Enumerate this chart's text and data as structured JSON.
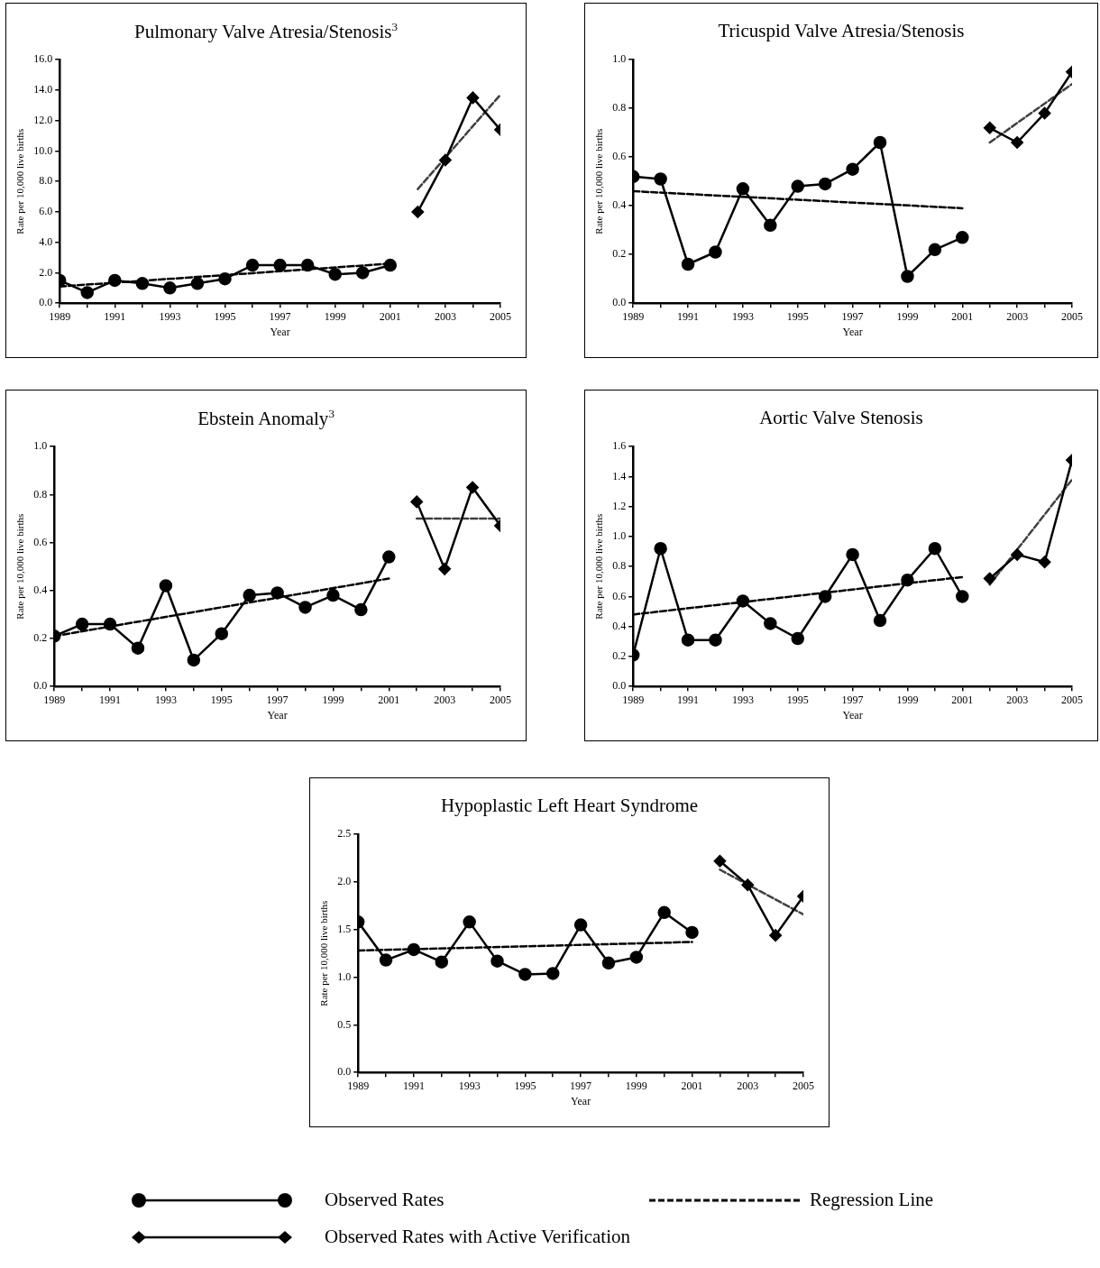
{
  "chart_data": [
    {
      "type": "line",
      "title": "Pulmonary Valve Atresia/Stenosis$^{3}$",
      "xlabel": "Year",
      "ylabel": "Rate per 10,000 live births",
      "xlim": [
        1989,
        2005
      ],
      "xticks": [
        1989,
        {
          "value": 1990,
          "label": null
        },
        1991,
        {
          "value": 1992,
          "label": null
        },
        1993,
        {
          "value": 1994,
          "label": null
        },
        1995,
        {
          "value": 1996,
          "label": null
        },
        1997,
        {
          "value": 1998,
          "label": null
        },
        1999,
        {
          "value": 2000,
          "label": null
        },
        2001,
        {
          "value": 2002,
          "label": null
        },
        2003,
        {
          "value": 2004,
          "label": null
        },
        2005
      ],
      "ylim": [
        0,
        16
      ],
      "yticks": [
        {
          "value": 0,
          "label": "0.0"
        },
        {
          "value": 2,
          "label": "2.0"
        },
        {
          "value": 4,
          "label": "4.0"
        },
        {
          "value": 6,
          "label": "6.0"
        },
        {
          "value": 8,
          "label": "8.0"
        },
        {
          "value": 10,
          "label": "10.0"
        },
        {
          "value": 12,
          "label": "12.0"
        },
        {
          "value": 14,
          "label": "14.0"
        },
        {
          "value": 16,
          "label": "16.0"
        }
      ],
      "legend": false,
      "series": [
        {
          "color": "#000000",
          "marker": "circle",
          "line_style": "solid",
          "x": [
            1989,
            1990,
            1991,
            1992,
            1993,
            1994,
            1995,
            1996,
            1997,
            1998,
            1999,
            2000,
            2001
          ],
          "values": [
            1.5,
            0.7,
            1.5,
            1.3,
            1.0,
            1.3,
            1.6,
            2.5,
            2.5,
            2.5,
            1.9,
            2.0,
            2.5
          ]
        },
        {
          "color": "#000000",
          "marker": "none",
          "line_style": "dashed",
          "x": [
            1989,
            2001
          ],
          "values": [
            1.1,
            2.6
          ]
        },
        {
          "color": "#000000",
          "marker": "diamond",
          "line_style": "solid",
          "x": [
            2002,
            2003,
            2004,
            2005
          ],
          "values": [
            6.0,
            9.4,
            13.5,
            11.4
          ]
        },
        {
          "color": "#404040",
          "marker": "none",
          "line_style": "dashed",
          "x": [
            2002,
            2005
          ],
          "values": [
            7.5,
            13.7
          ]
        }
      ]
    },
    {
      "type": "line",
      "title": "Tricuspid Valve Atresia/Stenosis",
      "xlabel": "Year",
      "ylabel": "Rate per 10,000 live births",
      "xlim": [
        1989,
        2005
      ],
      "xticks": [
        1989,
        {
          "value": 1990,
          "label": null
        },
        1991,
        {
          "value": 1992,
          "label": null
        },
        1993,
        {
          "value": 1994,
          "label": null
        },
        1995,
        {
          "value": 1996,
          "label": null
        },
        1997,
        {
          "value": 1998,
          "label": null
        },
        1999,
        {
          "value": 2000,
          "label": null
        },
        2001,
        {
          "value": 2002,
          "label": null
        },
        2003,
        {
          "value": 2004,
          "label": null
        },
        2005
      ],
      "ylim": [
        0,
        1
      ],
      "yticks": [
        {
          "value": 0,
          "label": "0.0"
        },
        0.2,
        0.4,
        0.6,
        0.8,
        {
          "value": 1,
          "label": "1.0"
        }
      ],
      "legend": false,
      "series": [
        {
          "color": "#000000",
          "marker": "circle",
          "line_style": "solid",
          "x": [
            1989,
            1990,
            1991,
            1992,
            1993,
            1994,
            1995,
            1996,
            1997,
            1998,
            1999,
            2000,
            2001
          ],
          "values": [
            0.52,
            0.51,
            0.16,
            0.21,
            0.47,
            0.32,
            0.48,
            0.49,
            0.55,
            0.66,
            0.11,
            0.22,
            0.27
          ]
        },
        {
          "color": "#000000",
          "marker": "none",
          "line_style": "dashed",
          "x": [
            1989,
            2001
          ],
          "values": [
            0.46,
            0.39
          ]
        },
        {
          "color": "#000000",
          "marker": "diamond",
          "line_style": "solid",
          "x": [
            2002,
            2003,
            2004,
            2005
          ],
          "values": [
            0.72,
            0.66,
            0.78,
            0.95
          ]
        },
        {
          "color": "#404040",
          "marker": "none",
          "line_style": "dashed",
          "x": [
            2002,
            2005
          ],
          "values": [
            0.66,
            0.9
          ]
        }
      ]
    },
    {
      "type": "line",
      "title": "Ebstein Anomaly$^{3}$",
      "xlabel": "Year",
      "ylabel": "Rate per 10,000 live births",
      "xlim": [
        1989,
        2005
      ],
      "xticks": [
        1989,
        {
          "value": 1990,
          "label": null
        },
        1991,
        {
          "value": 1992,
          "label": null
        },
        1993,
        {
          "value": 1994,
          "label": null
        },
        1995,
        {
          "value": 1996,
          "label": null
        },
        1997,
        {
          "value": 1998,
          "label": null
        },
        1999,
        {
          "value": 2000,
          "label": null
        },
        2001,
        {
          "value": 2002,
          "label": null
        },
        2003,
        {
          "value": 2004,
          "label": null
        },
        2005
      ],
      "ylim": [
        0,
        1
      ],
      "yticks": [
        {
          "value": 0,
          "label": "0.0"
        },
        0.2,
        0.4,
        0.6,
        0.8,
        {
          "value": 1,
          "label": "1.0"
        }
      ],
      "legend": false,
      "series": [
        {
          "color": "#000000",
          "marker": "circle",
          "line_style": "solid",
          "x": [
            1989,
            1990,
            1991,
            1992,
            1993,
            1994,
            1995,
            1996,
            1997,
            1998,
            1999,
            2000,
            2001
          ],
          "values": [
            0.21,
            0.26,
            0.26,
            0.16,
            0.42,
            0.11,
            0.22,
            0.38,
            0.39,
            0.33,
            0.38,
            0.32,
            0.54
          ]
        },
        {
          "color": "#000000",
          "marker": "none",
          "line_style": "dashed",
          "x": [
            1989,
            2001
          ],
          "values": [
            0.21,
            0.45
          ]
        },
        {
          "color": "#000000",
          "marker": "diamond",
          "line_style": "solid",
          "x": [
            2002,
            2003,
            2004,
            2005
          ],
          "values": [
            0.77,
            0.49,
            0.83,
            0.67
          ]
        },
        {
          "color": "#404040",
          "marker": "none",
          "line_style": "dashed",
          "x": [
            2002,
            2005
          ],
          "values": [
            0.7,
            0.7
          ]
        }
      ]
    },
    {
      "type": "line",
      "title": "Aortic Valve Stenosis",
      "xlabel": "Year",
      "ylabel": "Rate per 10,000 live births",
      "xlim": [
        1989,
        2005
      ],
      "xticks": [
        1989,
        {
          "value": 1990,
          "label": null
        },
        1991,
        {
          "value": 1992,
          "label": null
        },
        1993,
        {
          "value": 1994,
          "label": null
        },
        1995,
        {
          "value": 1996,
          "label": null
        },
        1997,
        {
          "value": 1998,
          "label": null
        },
        1999,
        {
          "value": 2000,
          "label": null
        },
        2001,
        {
          "value": 2002,
          "label": null
        },
        2003,
        {
          "value": 2004,
          "label": null
        },
        2005
      ],
      "ylim": [
        0,
        1.6
      ],
      "yticks": [
        {
          "value": 0,
          "label": "0.0"
        },
        0.2,
        0.4,
        0.6,
        0.8,
        {
          "value": 1,
          "label": "1.0"
        },
        1.2,
        1.4,
        1.6
      ],
      "legend": false,
      "series": [
        {
          "color": "#000000",
          "marker": "circle",
          "line_style": "solid",
          "x": [
            1989,
            1990,
            1991,
            1992,
            1993,
            1994,
            1995,
            1996,
            1997,
            1998,
            1999,
            2000,
            2001
          ],
          "values": [
            0.21,
            0.92,
            0.31,
            0.31,
            0.57,
            0.42,
            0.32,
            0.6,
            0.88,
            0.44,
            0.71,
            0.92,
            0.6
          ]
        },
        {
          "color": "#000000",
          "marker": "none",
          "line_style": "dashed",
          "x": [
            1989,
            2001
          ],
          "values": [
            0.48,
            0.73
          ]
        },
        {
          "color": "#000000",
          "marker": "diamond",
          "line_style": "solid",
          "x": [
            2002,
            2003,
            2004,
            2005
          ],
          "values": [
            0.72,
            0.88,
            0.83,
            1.51
          ]
        },
        {
          "color": "#404040",
          "marker": "none",
          "line_style": "dashed",
          "x": [
            2002,
            2005
          ],
          "values": [
            0.68,
            1.38
          ]
        }
      ]
    },
    {
      "type": "line",
      "title": "Hypoplastic Left Heart Syndrome",
      "xlabel": "Year",
      "ylabel": "Rate per 10,000 live births",
      "xlim": [
        1989,
        2005
      ],
      "xticks": [
        1989,
        {
          "value": 1990,
          "label": null
        },
        1991,
        {
          "value": 1992,
          "label": null
        },
        1993,
        {
          "value": 1994,
          "label": null
        },
        1995,
        {
          "value": 1996,
          "label": null
        },
        1997,
        {
          "value": 1998,
          "label": null
        },
        1999,
        {
          "value": 2000,
          "label": null
        },
        2001,
        {
          "value": 2002,
          "label": null
        },
        2003,
        {
          "value": 2004,
          "label": null
        },
        2005
      ],
      "ylim": [
        0,
        2.5
      ],
      "yticks": [
        {
          "value": 0,
          "label": "0.0"
        },
        0.5,
        {
          "value": 1,
          "label": "1.0"
        },
        1.5,
        {
          "value": 2,
          "label": "2.0"
        },
        2.5
      ],
      "legend": "bottom",
      "series": [
        {
          "name": "Observed Rates",
          "color": "#000000",
          "marker": "circle",
          "line_style": "solid",
          "x": [
            1989,
            1990,
            1991,
            1992,
            1993,
            1994,
            1995,
            1996,
            1997,
            1998,
            1999,
            2000,
            2001
          ],
          "values": [
            1.58,
            1.18,
            1.29,
            1.16,
            1.58,
            1.17,
            1.03,
            1.04,
            1.55,
            1.15,
            1.21,
            1.68,
            1.47
          ]
        },
        {
          "name": "Regression Line",
          "color": "#000000",
          "marker": "none",
          "line_style": "dashed",
          "x": [
            1989,
            2001
          ],
          "values": [
            1.28,
            1.37
          ]
        },
        {
          "name": "Observed Rates with Active Verification",
          "color": "#000000",
          "marker": "diamond",
          "line_style": "solid",
          "x": [
            2002,
            2003,
            2004,
            2005
          ],
          "values": [
            2.22,
            1.97,
            1.44,
            1.85
          ]
        },
        {
          "color": "#404040",
          "marker": "none",
          "line_style": "dashed",
          "x": [
            2002,
            2005
          ],
          "values": [
            2.13,
            1.66
          ]
        }
      ]
    }
  ]
}
